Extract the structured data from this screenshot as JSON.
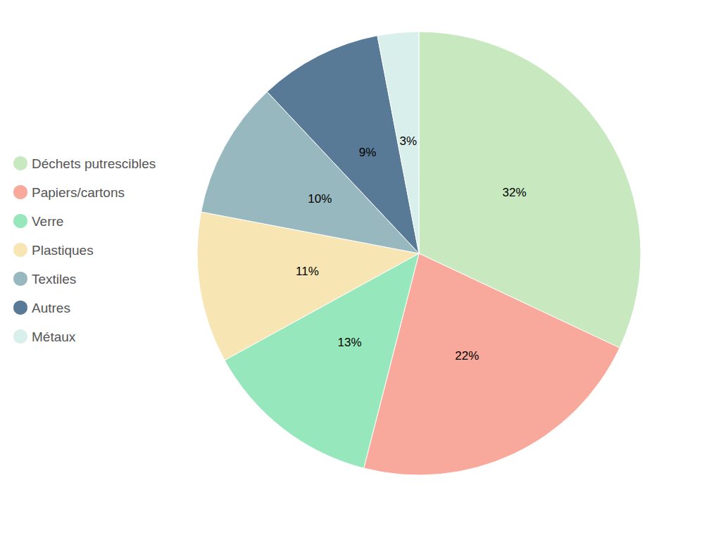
{
  "chart_data": {
    "type": "pie",
    "categories": [
      "Déchets putrescibles",
      "Papiers/cartons",
      "Verre",
      "Plastiques",
      "Textiles",
      "Autres",
      "Métaux"
    ],
    "values": [
      32,
      22,
      13,
      11,
      10,
      9,
      3
    ],
    "value_labels": [
      "32%",
      "22%",
      "13%",
      "11%",
      "10%",
      "9%",
      "3%"
    ],
    "colors": [
      "#c8e8c0",
      "#f9a89c",
      "#96e8bc",
      "#f7e6b4",
      "#98b8c0",
      "#587a96",
      "#d9efec"
    ],
    "data_labels": true,
    "legend": "left"
  }
}
